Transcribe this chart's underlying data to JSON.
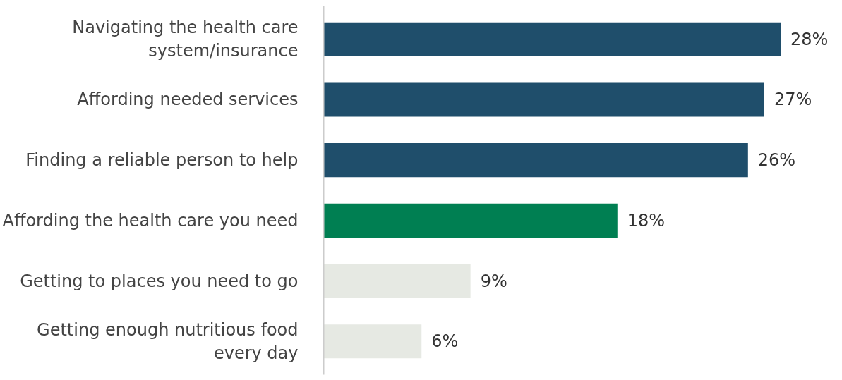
{
  "chart_data": {
    "type": "bar",
    "orientation": "horizontal",
    "categories": [
      "Navigating the health care\nsystem/insurance",
      "Affording needed services",
      "Finding a reliable person to help",
      "Affording the health care you need",
      "Getting to places you need to go",
      "Getting enough nutritious food\nevery day"
    ],
    "values": [
      28,
      27,
      26,
      18,
      9,
      6
    ],
    "colors": [
      "#1f4e6b",
      "#1f4e6b",
      "#1f4e6b",
      "#007f52",
      "#e6e9e3",
      "#e6e9e3"
    ],
    "value_labels": [
      "28%",
      "27%",
      "26%",
      "18%",
      "9%",
      "6%"
    ]
  }
}
